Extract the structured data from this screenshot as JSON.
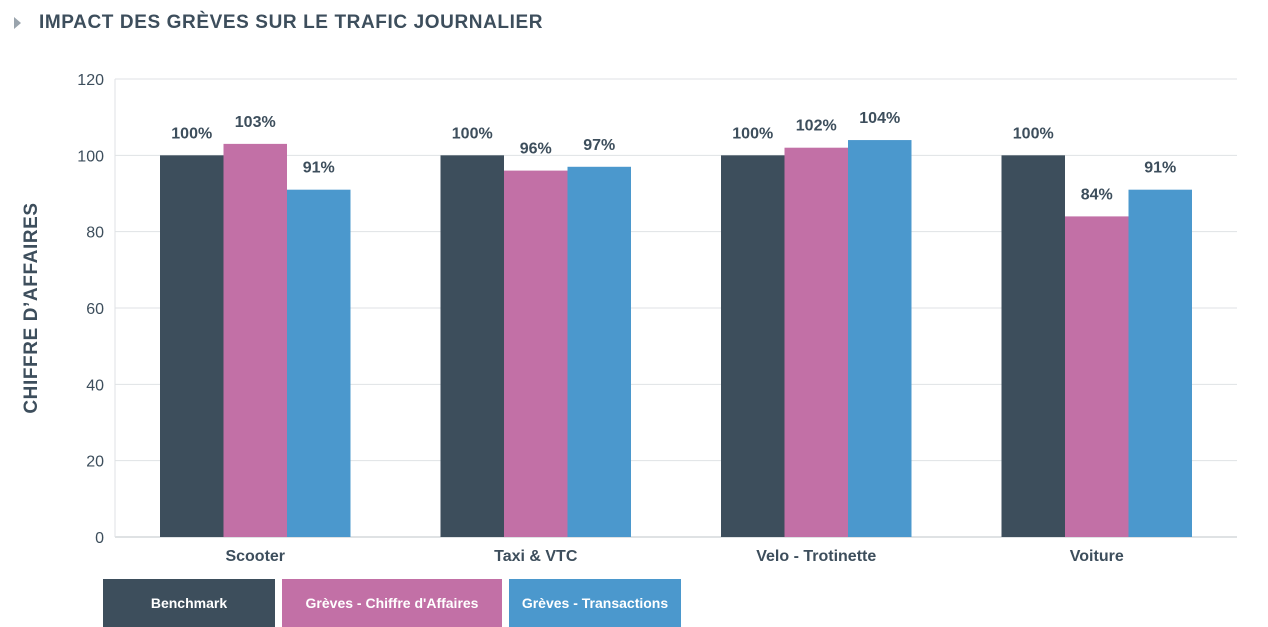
{
  "header": {
    "title": "IMPACT DES GRÈVES SUR LE TRAFIC JOURNALIER"
  },
  "chart_data": {
    "type": "bar",
    "title": "IMPACT DES GRÈVES SUR LE TRAFIC JOURNALIER",
    "ylabel": "CHIFFRE D’AFFAIRES",
    "xlabel": "",
    "ylim": [
      0,
      120
    ],
    "yticks": [
      0,
      20,
      40,
      60,
      80,
      100,
      120
    ],
    "grid": true,
    "legend_placement": "bottom-left",
    "categories": [
      "Scooter",
      "Taxi & VTC",
      "Velo - Trotinette",
      "Voiture"
    ],
    "series": [
      {
        "name": "Benchmark",
        "color": "#3d4e5c",
        "values": [
          100,
          100,
          100,
          100
        ],
        "labels": [
          "100%",
          "100%",
          "100%",
          "100%"
        ]
      },
      {
        "name": "Grèves - Chiffre d'Affaires",
        "color": "#c270a6",
        "values": [
          103,
          96,
          102,
          84
        ],
        "labels": [
          "103%",
          "96%",
          "102%",
          "84%"
        ]
      },
      {
        "name": "Grèves - Transactions",
        "color": "#4b98cd",
        "values": [
          91,
          97,
          104,
          91
        ],
        "labels": [
          "91%",
          "97%",
          "104%",
          "91%"
        ]
      }
    ]
  }
}
